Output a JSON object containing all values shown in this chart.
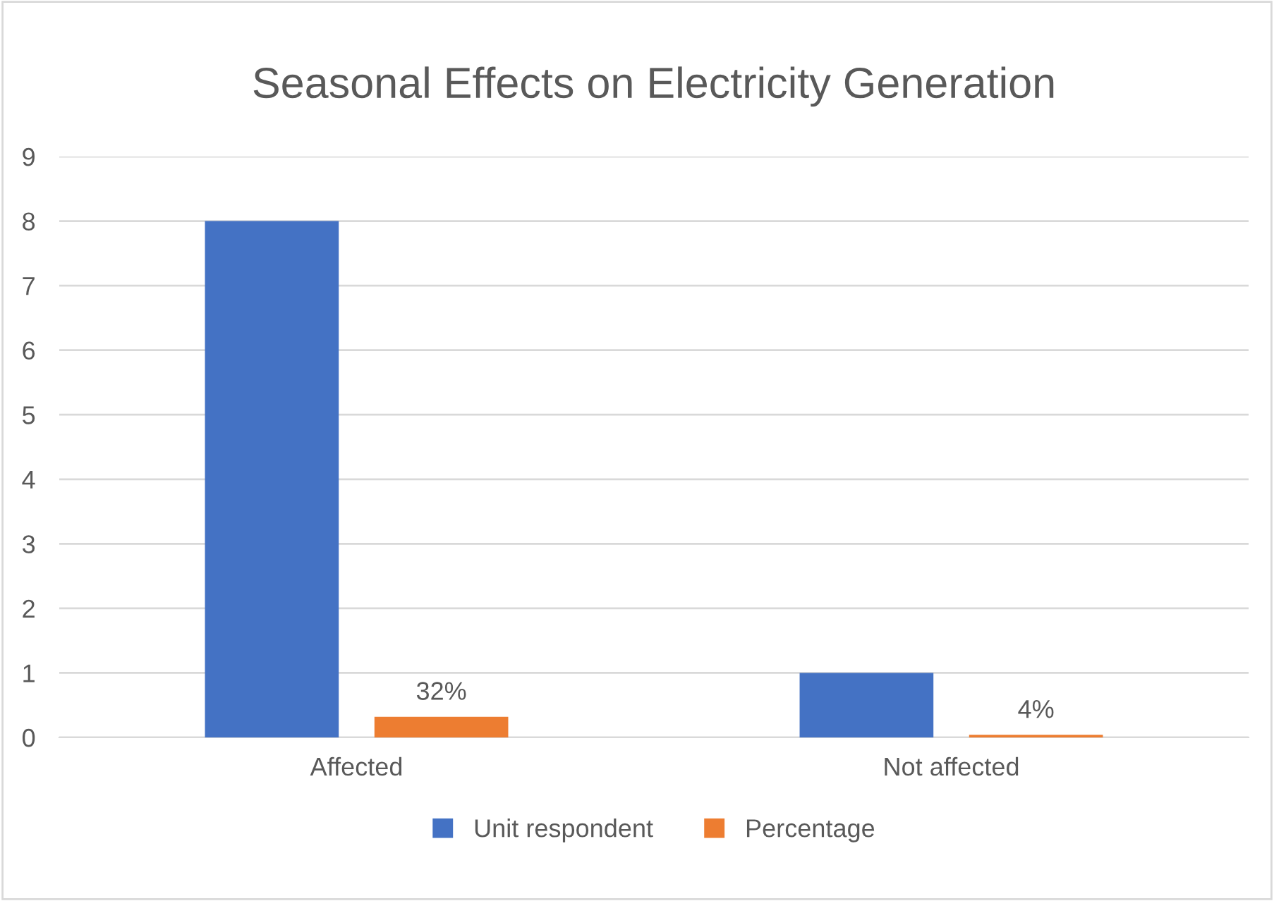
{
  "chart_data": {
    "type": "bar",
    "title": "Seasonal Effects on Electricity Generation",
    "categories": [
      "Affected",
      "Not affected"
    ],
    "series": [
      {
        "name": "Unit respondent",
        "color": "#4472c4",
        "values": [
          8,
          1
        ]
      },
      {
        "name": "Percentage",
        "color": "#ed7d31",
        "values": [
          0.32,
          0.04
        ],
        "value_labels": [
          "32%",
          "4%"
        ]
      }
    ],
    "ylim": [
      0,
      9
    ],
    "yticks": [
      0,
      1,
      2,
      3,
      4,
      5,
      6,
      7,
      8,
      9
    ],
    "grid": "y",
    "legend": "bottom"
  }
}
